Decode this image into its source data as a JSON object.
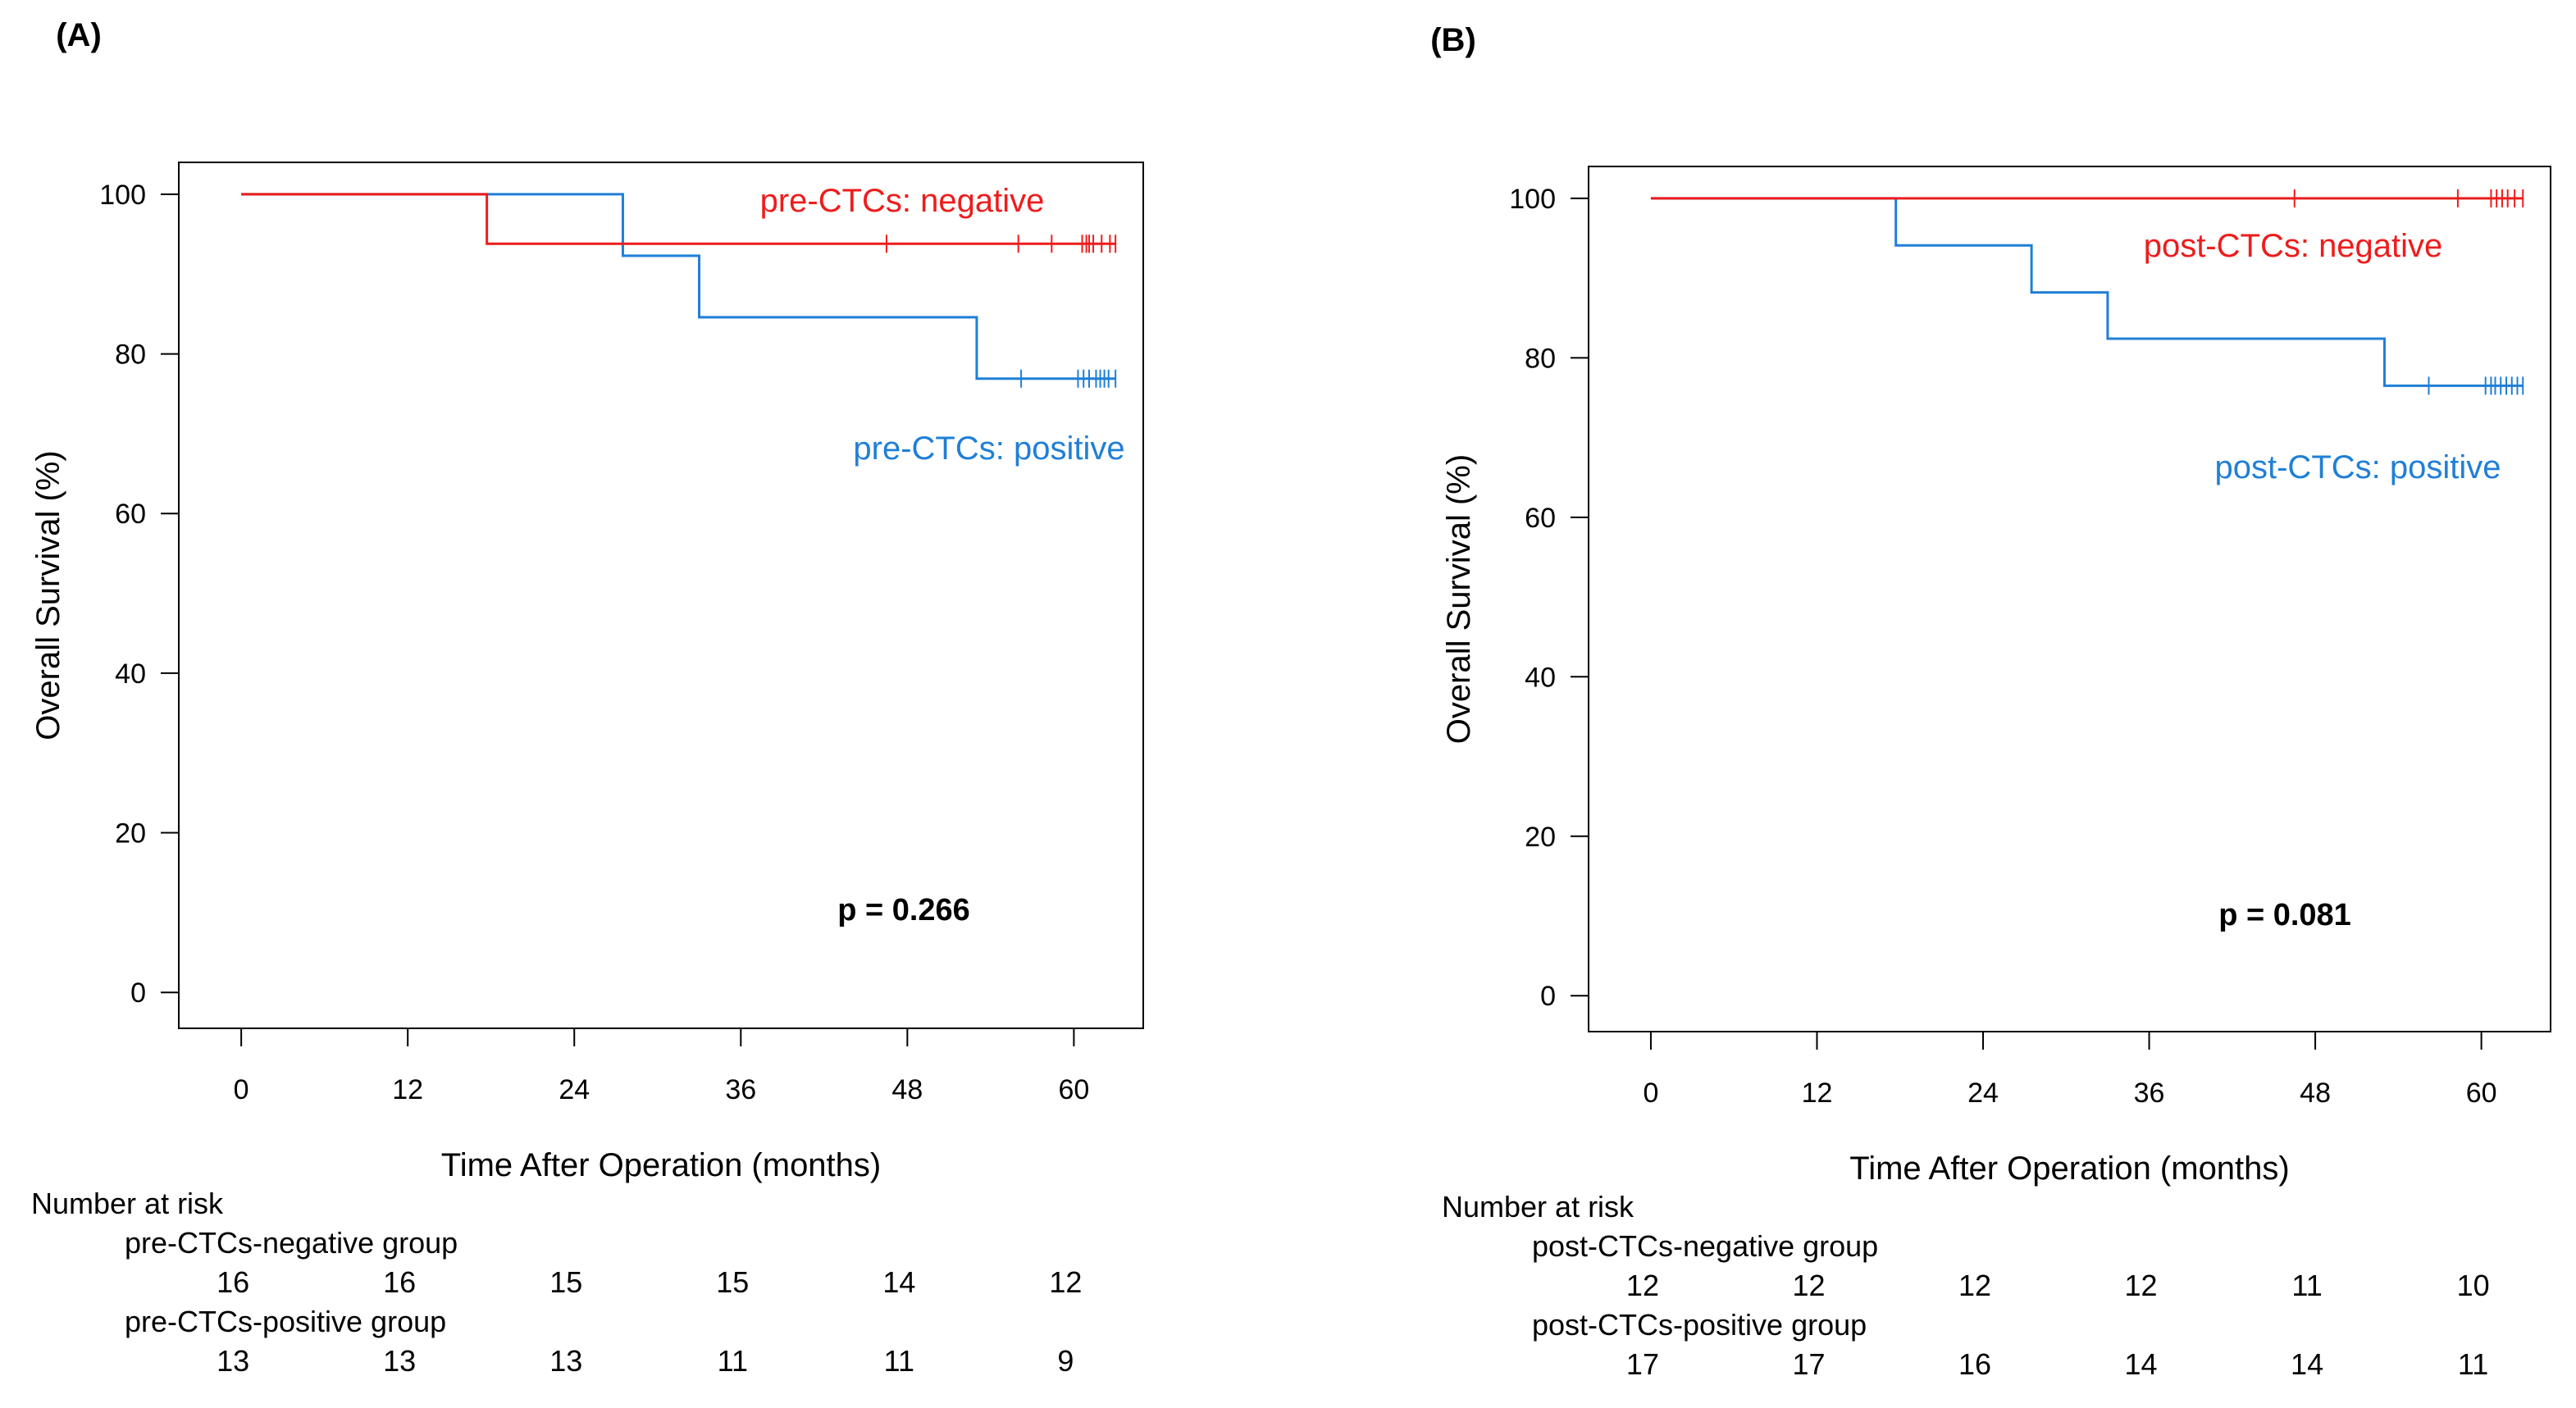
{
  "colors": {
    "negative": "#ee1c1c",
    "positive": "#1f7fd6",
    "axis": "#000000"
  },
  "chart_data": [
    {
      "type": "line",
      "panel_label": "(A)",
      "title": "",
      "xlabel": "Time After Operation (months)",
      "ylabel": "Overall Survival (%)",
      "xlim": [
        -4.5,
        65
      ],
      "ylim": [
        -4.5,
        104
      ],
      "xticks": [
        0,
        12,
        24,
        36,
        48,
        60
      ],
      "yticks": [
        0,
        20,
        40,
        60,
        80,
        100
      ],
      "grid": false,
      "p_value": "p = 0.266",
      "series": [
        {
          "name": "pre-CTCs: negative",
          "color": "negative",
          "steps": [
            [
              0,
              100
            ],
            [
              17.7,
              93.8
            ],
            [
              63,
              93.8
            ]
          ],
          "censors": [
            46.5,
            56,
            58.4,
            60.6,
            60.9,
            61.1,
            61.4,
            62,
            62.6,
            63
          ]
        },
        {
          "name": "pre-CTCs: positive",
          "color": "positive",
          "steps": [
            [
              0,
              100
            ],
            [
              27.5,
              92.3
            ],
            [
              33,
              84.6
            ],
            [
              53,
              76.9
            ],
            [
              63,
              76.9
            ]
          ],
          "censors": [
            56.2,
            60.3,
            60.7,
            61.1,
            61.6,
            61.9,
            62.2,
            62.5,
            63
          ]
        }
      ],
      "risk_table": {
        "title": "Number at risk",
        "groups": [
          {
            "label": "pre-CTCs-negative group",
            "values": [
              16,
              16,
              15,
              15,
              14,
              12
            ]
          },
          {
            "label": "pre-CTCs-positive  group",
            "values": [
              13,
              13,
              13,
              11,
              11,
              9
            ]
          }
        ]
      }
    },
    {
      "type": "line",
      "panel_label": "(B)",
      "title": "",
      "xlabel": "Time After Operation (months)",
      "ylabel": "Overall Survival (%)",
      "xlim": [
        -4.5,
        65
      ],
      "ylim": [
        -4.5,
        104
      ],
      "xticks": [
        0,
        12,
        24,
        36,
        48,
        60
      ],
      "yticks": [
        0,
        20,
        40,
        60,
        80,
        100
      ],
      "grid": false,
      "p_value": "p = 0.081",
      "series": [
        {
          "name": "post-CTCs: negative",
          "color": "negative",
          "steps": [
            [
              0,
              100
            ],
            [
              63,
              100
            ]
          ],
          "censors": [
            46.5,
            58.3,
            60.7,
            61.1,
            61.5,
            61.9,
            62.4,
            63
          ]
        },
        {
          "name": "post-CTCs: positive",
          "color": "positive",
          "steps": [
            [
              0,
              100
            ],
            [
              17.7,
              94.1
            ],
            [
              27.5,
              88.2
            ],
            [
              33,
              82.4
            ],
            [
              53,
              76.5
            ],
            [
              63,
              76.5
            ]
          ],
          "censors": [
            56.2,
            60.3,
            60.7,
            61,
            61.4,
            61.8,
            62.2,
            62.6,
            63
          ]
        }
      ],
      "risk_table": {
        "title": "Number at risk",
        "groups": [
          {
            "label": "post-CTCs-negative group",
            "values": [
              12,
              12,
              12,
              12,
              11,
              10
            ]
          },
          {
            "label": "post-CTCs-positive  group",
            "values": [
              17,
              17,
              16,
              14,
              14,
              11
            ]
          }
        ]
      }
    }
  ]
}
